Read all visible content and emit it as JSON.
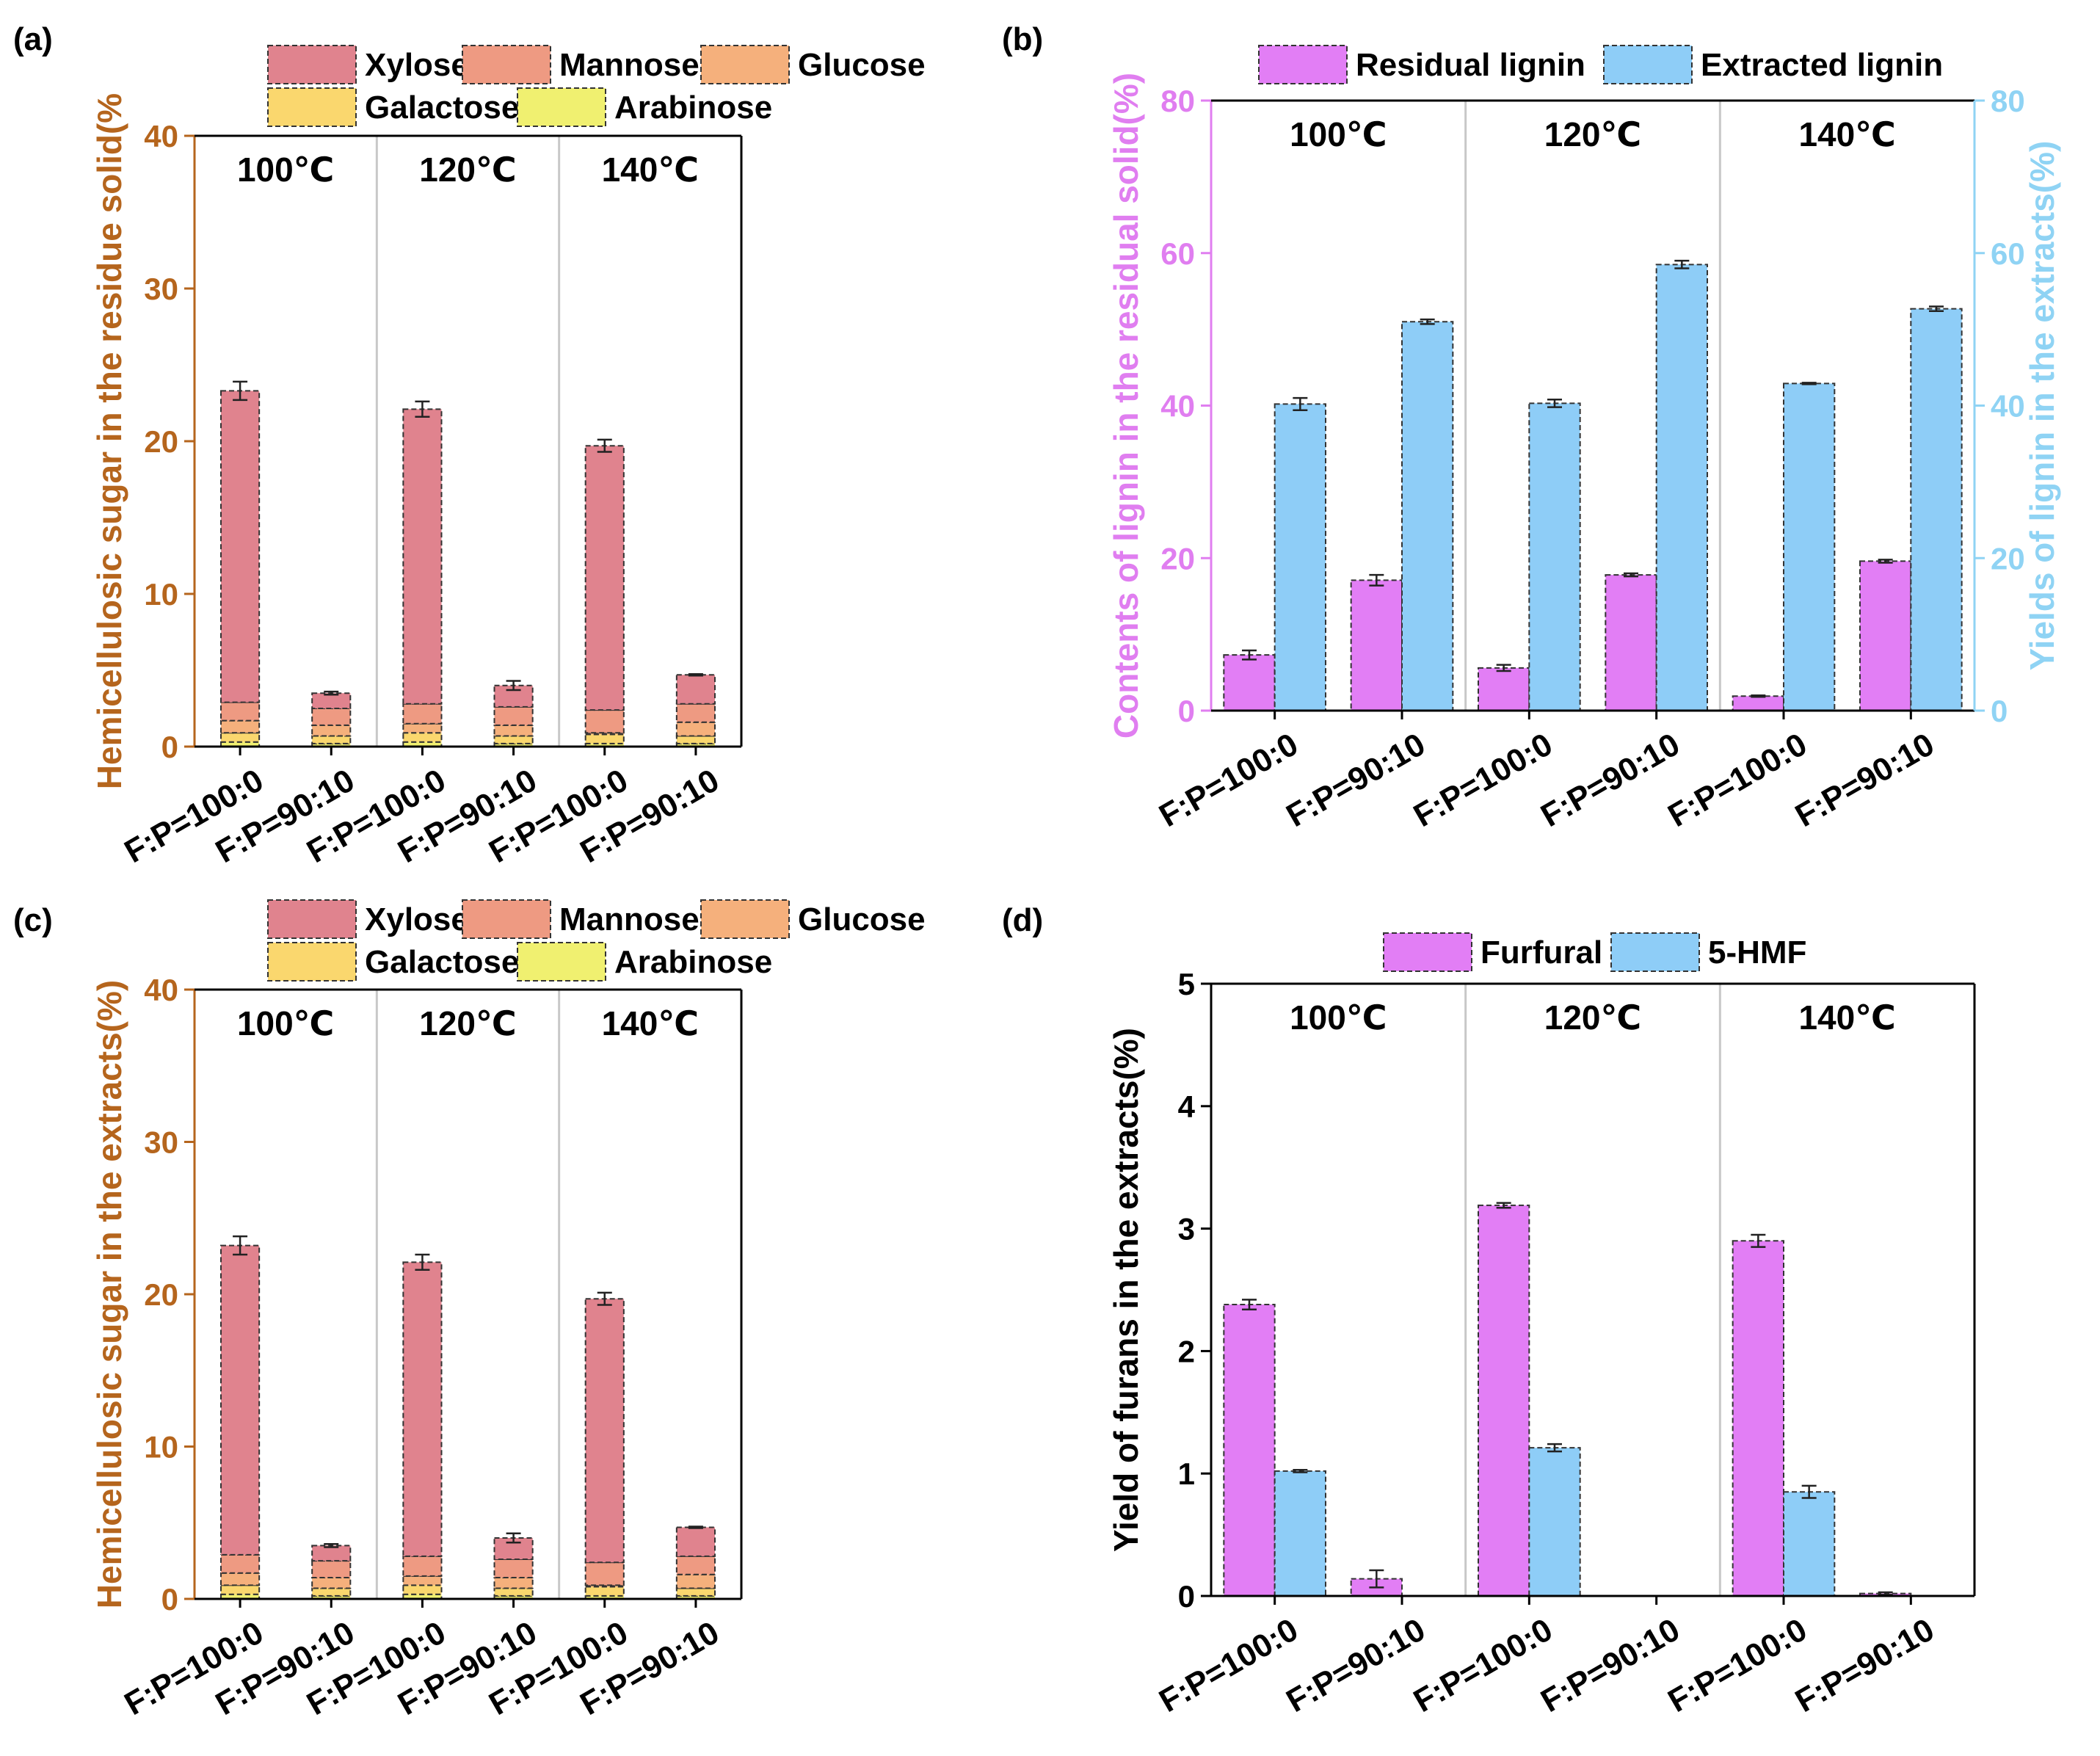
{
  "figure": {
    "panels": [
      {
        "label": "(a)"
      },
      {
        "label": "(b)"
      },
      {
        "label": "(c)"
      },
      {
        "label": "(d)"
      }
    ]
  },
  "chart_data": [
    {
      "panel": "(a)",
      "type": "stacked-bar",
      "title": "",
      "ylabel": "Hemicellulosic sugar in the residue solid(%",
      "xlabel": "",
      "ylim": [
        0,
        40
      ],
      "yticks": [
        "0",
        "10",
        "20",
        "30",
        "40"
      ],
      "groups": [
        "100℃",
        "120℃",
        "140℃"
      ],
      "categories": [
        "F:P=100:0",
        "F:P=90:10",
        "F:P=100:0",
        "F:P=90:10",
        "F:P=100:0",
        "F:P=90:10"
      ],
      "series": [
        {
          "name": "Arabinose",
          "color": "#f0f070",
          "values": [
            0.3,
            0.2,
            0.3,
            0.2,
            0.2,
            0.2
          ]
        },
        {
          "name": "Galactose",
          "color": "#fad76e",
          "values": [
            0.6,
            0.5,
            0.6,
            0.5,
            0.6,
            0.5
          ]
        },
        {
          "name": "Glucose",
          "color": "#f5b07c",
          "values": [
            0.8,
            0.7,
            0.6,
            0.7,
            0.1,
            0.9
          ]
        },
        {
          "name": "Mannose",
          "color": "#ee9a82",
          "values": [
            1.2,
            1.1,
            1.3,
            1.2,
            1.5,
            1.2
          ]
        },
        {
          "name": "Xylose",
          "color": "#e0838e",
          "values": [
            20.4,
            1.0,
            19.3,
            1.4,
            17.3,
            1.9
          ]
        }
      ],
      "legend_order": [
        "Xylose",
        "Mannose",
        "Glucose",
        "Galactose",
        "Arabinose"
      ],
      "errors": [
        0.6,
        0.1,
        0.5,
        0.3,
        0.4,
        0.05
      ],
      "legend": "top"
    },
    {
      "panel": "(b)",
      "type": "bar",
      "title": "",
      "ylabel": "Contents of lignin in the residual solid(%)",
      "ylabel_right": "Yields of lignin in the extracts(%)",
      "xlabel": "",
      "ylim": [
        0,
        80
      ],
      "yticks": [
        "0",
        "20",
        "40",
        "60",
        "80"
      ],
      "groups": [
        "100℃",
        "120℃",
        "140℃"
      ],
      "categories": [
        "F:P=100:0",
        "F:P=90:10",
        "F:P=100:0",
        "F:P=90:10",
        "F:P=100:0",
        "F:P=90:10"
      ],
      "series": [
        {
          "name": "Residual lignin",
          "color": "#e27ef5",
          "values": [
            7.3,
            17.1,
            5.6,
            17.8,
            1.9,
            19.6
          ],
          "errors": [
            0.6,
            0.7,
            0.4,
            0.2,
            0.1,
            0.2
          ]
        },
        {
          "name": "Extracted lignin",
          "color": "#8ecdf7",
          "values": [
            40.2,
            51.0,
            40.3,
            58.5,
            42.9,
            52.7
          ],
          "errors": [
            0.8,
            0.3,
            0.5,
            0.5,
            0.1,
            0.3
          ]
        }
      ],
      "legend": "top"
    },
    {
      "panel": "(c)",
      "type": "stacked-bar",
      "title": "",
      "ylabel": "Hemicellulosic sugar in the extracts(%)",
      "xlabel": "",
      "ylim": [
        0,
        40
      ],
      "yticks": [
        "0",
        "10",
        "20",
        "30",
        "40"
      ],
      "groups": [
        "100℃",
        "120℃",
        "140℃"
      ],
      "categories": [
        "F:P=100:0",
        "F:P=90:10",
        "F:P=100:0",
        "F:P=90:10",
        "F:P=100:0",
        "F:P=90:10"
      ],
      "series": [
        {
          "name": "Arabinose",
          "color": "#f0f070",
          "values": [
            0.3,
            0.2,
            0.3,
            0.2,
            0.2,
            0.2
          ]
        },
        {
          "name": "Galactose",
          "color": "#fad76e",
          "values": [
            0.6,
            0.5,
            0.6,
            0.5,
            0.6,
            0.5
          ]
        },
        {
          "name": "Glucose",
          "color": "#f5b07c",
          "values": [
            0.8,
            0.7,
            0.6,
            0.7,
            0.1,
            0.9
          ]
        },
        {
          "name": "Mannose",
          "color": "#ee9a82",
          "values": [
            1.2,
            1.1,
            1.3,
            1.2,
            1.5,
            1.2
          ]
        },
        {
          "name": "Xylose",
          "color": "#e0838e",
          "values": [
            20.3,
            1.0,
            19.3,
            1.4,
            17.3,
            1.9
          ]
        }
      ],
      "legend_order": [
        "Xylose",
        "Mannose",
        "Glucose",
        "Galactose",
        "Arabinose"
      ],
      "errors": [
        0.6,
        0.1,
        0.5,
        0.3,
        0.4,
        0.05
      ],
      "legend": "top"
    },
    {
      "panel": "(d)",
      "type": "bar",
      "title": "",
      "ylabel": "Yield of furans in the extracts(%)",
      "xlabel": "",
      "ylim": [
        0,
        5
      ],
      "yticks": [
        "0",
        "1",
        "2",
        "3",
        "4",
        "5"
      ],
      "groups": [
        "100℃",
        "120℃",
        "140℃"
      ],
      "categories": [
        "F:P=100:0",
        "F:P=90:10",
        "F:P=100:0",
        "F:P=90:10",
        "F:P=100:0",
        "F:P=90:10"
      ],
      "series": [
        {
          "name": "Furfural",
          "color": "#e27ef5",
          "values": [
            2.38,
            0.14,
            3.19,
            0,
            2.9,
            0.02
          ],
          "errors": [
            0.04,
            0.07,
            0.02,
            0,
            0.05,
            0.01
          ]
        },
        {
          "name": "5-HMF",
          "color": "#8ecdf7",
          "values": [
            1.02,
            0,
            1.21,
            0,
            0.85,
            0
          ],
          "errors": [
            0.01,
            0,
            0.03,
            0,
            0.05,
            0
          ]
        }
      ],
      "legend": "top"
    }
  ]
}
